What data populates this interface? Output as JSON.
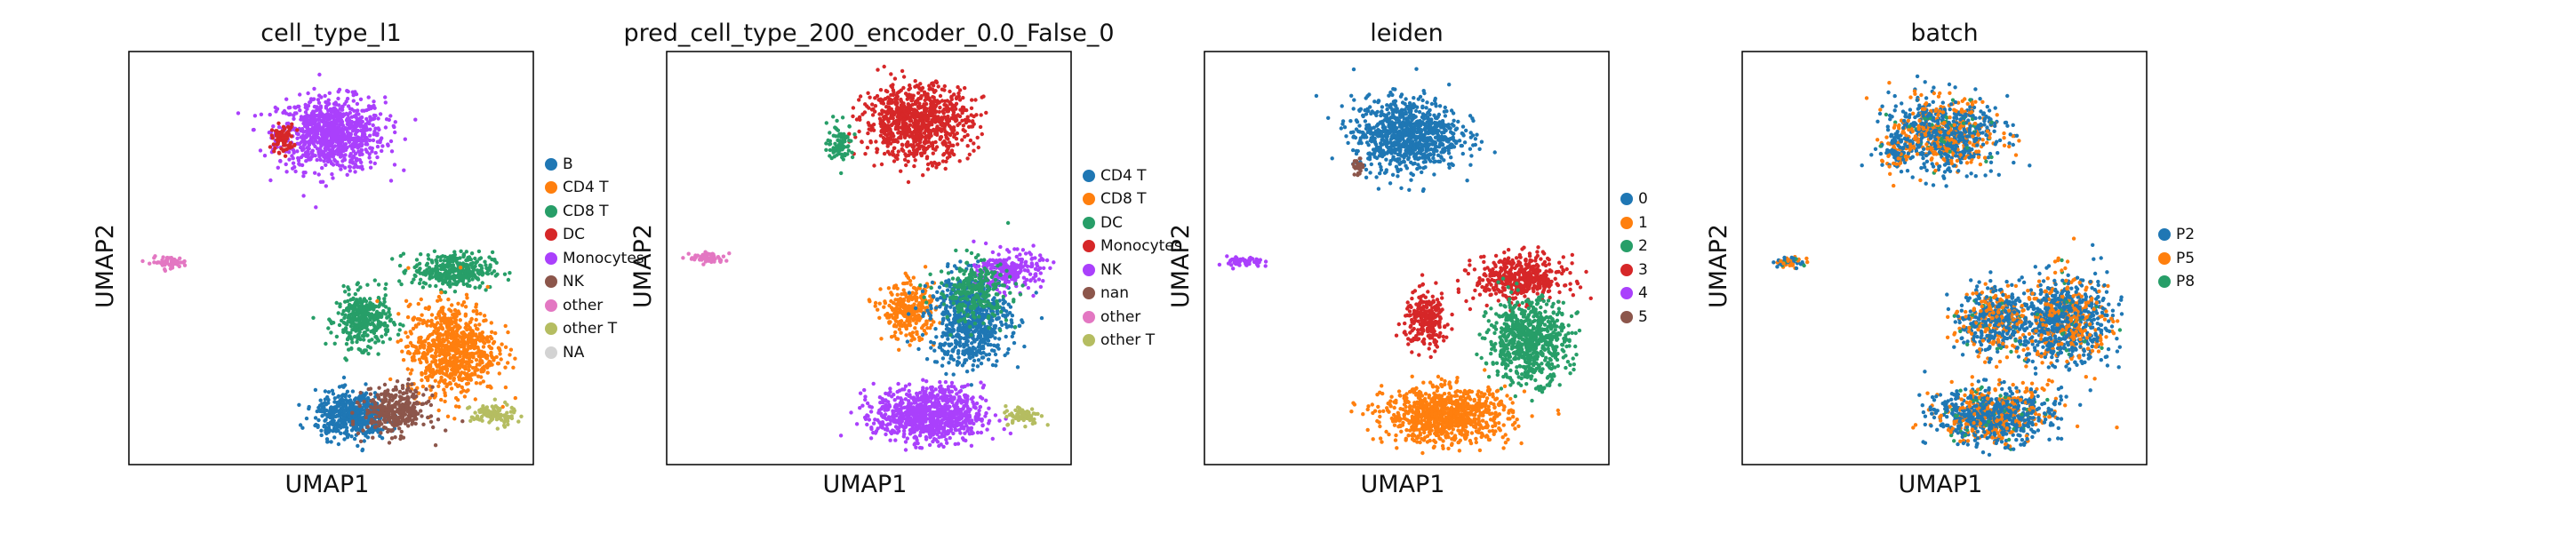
{
  "chart_data": [
    {
      "type": "scatter",
      "title": "cell_type_l1",
      "xlabel": "UMAP1",
      "ylabel": "UMAP2",
      "grid": false,
      "legend_placement": "right",
      "legend": [
        {
          "name": "B",
          "color": "#1f77b4"
        },
        {
          "name": "CD4 T",
          "color": "#ff7f0e"
        },
        {
          "name": "CD8 T",
          "color": "#279e68"
        },
        {
          "name": "DC",
          "color": "#d62728"
        },
        {
          "name": "Monocytes",
          "color": "#aa40fc"
        },
        {
          "name": "NK",
          "color": "#8c564b"
        },
        {
          "name": "other",
          "color": "#e377c2"
        },
        {
          "name": "other T",
          "color": "#b5bd61"
        },
        {
          "name": "NA",
          "color": "#d3d3d3"
        }
      ],
      "clusters": [
        {
          "category": "Monocytes",
          "center": [
            0.5,
            0.8
          ],
          "spread": [
            0.12,
            0.08
          ],
          "density": 900
        },
        {
          "category": "DC",
          "center": [
            0.38,
            0.79
          ],
          "spread": [
            0.025,
            0.03
          ],
          "density": 80
        },
        {
          "category": "other",
          "center": [
            0.1,
            0.49
          ],
          "spread": [
            0.04,
            0.012
          ],
          "density": 60
        },
        {
          "category": "CD8 T",
          "center": [
            0.58,
            0.35
          ],
          "spread": [
            0.06,
            0.06
          ],
          "density": 350
        },
        {
          "category": "CD8 T",
          "center": [
            0.8,
            0.47
          ],
          "spread": [
            0.09,
            0.04
          ],
          "density": 350
        },
        {
          "category": "CD4 T",
          "center": [
            0.8,
            0.28
          ],
          "spread": [
            0.1,
            0.1
          ],
          "density": 800
        },
        {
          "category": "B",
          "center": [
            0.55,
            0.12
          ],
          "spread": [
            0.08,
            0.05
          ],
          "density": 500
        },
        {
          "category": "NK",
          "center": [
            0.66,
            0.13
          ],
          "spread": [
            0.07,
            0.05
          ],
          "density": 350
        },
        {
          "category": "other T",
          "center": [
            0.9,
            0.12
          ],
          "spread": [
            0.05,
            0.025
          ],
          "density": 100
        }
      ]
    },
    {
      "type": "scatter",
      "title": "pred_cell_type_200_encoder_0.0_False_0",
      "xlabel": "UMAP1",
      "ylabel": "UMAP2",
      "grid": false,
      "legend_placement": "right",
      "legend": [
        {
          "name": "CD4 T",
          "color": "#1f77b4"
        },
        {
          "name": "CD8 T",
          "color": "#ff7f0e"
        },
        {
          "name": "DC",
          "color": "#279e68"
        },
        {
          "name": "Monocytes",
          "color": "#d62728"
        },
        {
          "name": "NK",
          "color": "#aa40fc"
        },
        {
          "name": "nan",
          "color": "#8c564b"
        },
        {
          "name": "other",
          "color": "#e377c2"
        },
        {
          "name": "other T",
          "color": "#b5bd61"
        }
      ],
      "clusters": [
        {
          "category": "Monocytes",
          "center": [
            0.62,
            0.83
          ],
          "spread": [
            0.12,
            0.08
          ],
          "density": 900
        },
        {
          "category": "DC",
          "center": [
            0.43,
            0.78
          ],
          "spread": [
            0.03,
            0.04
          ],
          "density": 90
        },
        {
          "category": "other",
          "center": [
            0.1,
            0.5
          ],
          "spread": [
            0.04,
            0.012
          ],
          "density": 60
        },
        {
          "category": "CD8 T",
          "center": [
            0.6,
            0.37
          ],
          "spread": [
            0.06,
            0.06
          ],
          "density": 300
        },
        {
          "category": "CD4 T",
          "center": [
            0.75,
            0.35
          ],
          "spread": [
            0.09,
            0.1
          ],
          "density": 700
        },
        {
          "category": "NK",
          "center": [
            0.85,
            0.47
          ],
          "spread": [
            0.07,
            0.04
          ],
          "density": 250
        },
        {
          "category": "DC",
          "center": [
            0.76,
            0.42
          ],
          "spread": [
            0.08,
            0.07
          ],
          "density": 250
        },
        {
          "category": "NK",
          "center": [
            0.65,
            0.12
          ],
          "spread": [
            0.12,
            0.06
          ],
          "density": 900
        },
        {
          "category": "other T",
          "center": [
            0.88,
            0.12
          ],
          "spread": [
            0.04,
            0.02
          ],
          "density": 80
        }
      ]
    },
    {
      "type": "scatter",
      "title": "leiden",
      "xlabel": "UMAP1",
      "ylabel": "UMAP2",
      "grid": false,
      "legend_placement": "right",
      "legend": [
        {
          "name": "0",
          "color": "#1f77b4"
        },
        {
          "name": "1",
          "color": "#ff7f0e"
        },
        {
          "name": "2",
          "color": "#279e68"
        },
        {
          "name": "3",
          "color": "#d62728"
        },
        {
          "name": "4",
          "color": "#aa40fc"
        },
        {
          "name": "5",
          "color": "#8c564b"
        }
      ],
      "clusters": [
        {
          "category": "0",
          "center": [
            0.5,
            0.8
          ],
          "spread": [
            0.12,
            0.08
          ],
          "density": 900
        },
        {
          "category": "5",
          "center": [
            0.38,
            0.72
          ],
          "spread": [
            0.012,
            0.02
          ],
          "density": 25
        },
        {
          "category": "4",
          "center": [
            0.1,
            0.49
          ],
          "spread": [
            0.04,
            0.012
          ],
          "density": 60
        },
        {
          "category": "3",
          "center": [
            0.55,
            0.35
          ],
          "spread": [
            0.05,
            0.06
          ],
          "density": 250
        },
        {
          "category": "3",
          "center": [
            0.78,
            0.45
          ],
          "spread": [
            0.1,
            0.05
          ],
          "density": 450
        },
        {
          "category": "2",
          "center": [
            0.8,
            0.3
          ],
          "spread": [
            0.09,
            0.09
          ],
          "density": 700
        },
        {
          "category": "1",
          "center": [
            0.6,
            0.12
          ],
          "spread": [
            0.14,
            0.06
          ],
          "density": 900
        }
      ]
    },
    {
      "type": "scatter",
      "title": "batch",
      "xlabel": "UMAP1",
      "ylabel": "UMAP2",
      "grid": false,
      "legend_placement": "right",
      "legend": [
        {
          "name": "P2",
          "color": "#1f77b4"
        },
        {
          "name": "P5",
          "color": "#ff7f0e"
        },
        {
          "name": "P8",
          "color": "#279e68"
        }
      ],
      "clusters": [
        {
          "category": "mixed",
          "center": [
            0.5,
            0.8
          ],
          "spread": [
            0.12,
            0.08
          ],
          "density": 900
        },
        {
          "category": "mixed",
          "center": [
            0.38,
            0.76
          ],
          "spread": [
            0.03,
            0.04
          ],
          "density": 80
        },
        {
          "category": "mixed",
          "center": [
            0.12,
            0.49
          ],
          "spread": [
            0.04,
            0.012
          ],
          "density": 60
        },
        {
          "category": "mixed",
          "center": [
            0.62,
            0.35
          ],
          "spread": [
            0.08,
            0.07
          ],
          "density": 500
        },
        {
          "category": "mixed",
          "center": [
            0.8,
            0.35
          ],
          "spread": [
            0.1,
            0.1
          ],
          "density": 900
        },
        {
          "category": "mixed",
          "center": [
            0.62,
            0.12
          ],
          "spread": [
            0.13,
            0.06
          ],
          "density": 900
        }
      ],
      "mix_weights": [
        0.6,
        0.35,
        0.05
      ]
    }
  ]
}
